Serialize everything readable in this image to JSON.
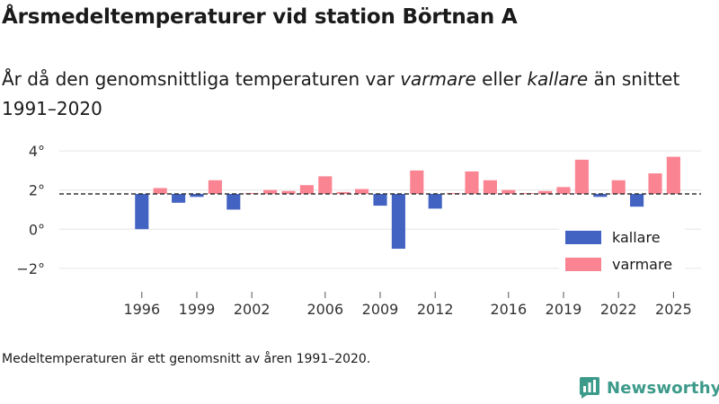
{
  "title": "Årsmedeltemperaturer vid station Börtnan A",
  "subtitle": {
    "part1": "År då den genomsnittliga temperaturen var ",
    "warm_word": "varmare",
    "part2": " eller ",
    "cold_word": "kallare",
    "part3": " än snittet 1991–2020"
  },
  "note": "Medeltemperaturen är ett genomsnitt av åren 1991–2020.",
  "brand": {
    "name": "Newsworthy"
  },
  "colors": {
    "kallare": "#4263c2",
    "varmare": "#fb8493",
    "grid": "#e6e6e6",
    "reference": "#333333",
    "brand": "#3c9a8a"
  },
  "chart_data": {
    "type": "bar",
    "reference_line": 1.8,
    "ylim": [
      -3.2,
      4.6
    ],
    "y_ticks": [
      {
        "value": -2,
        "label": "−2°"
      },
      {
        "value": 0,
        "label": "0°"
      },
      {
        "value": 2,
        "label": "2°"
      },
      {
        "value": 4,
        "label": "4°"
      }
    ],
    "x_ticks": [
      1996,
      1999,
      2002,
      2006,
      2009,
      2012,
      2016,
      2019,
      2022,
      2025
    ],
    "xlim": [
      1991.5,
      2026.5
    ],
    "legend": {
      "position": "bottom-right",
      "entries": [
        {
          "key": "kallare",
          "label": "kallare"
        },
        {
          "key": "varmare",
          "label": "varmare"
        }
      ]
    },
    "series": [
      {
        "year": 1996,
        "value": 0.0
      },
      {
        "year": 1997,
        "value": 2.1
      },
      {
        "year": 1998,
        "value": 1.35
      },
      {
        "year": 1999,
        "value": 1.65
      },
      {
        "year": 2000,
        "value": 2.5
      },
      {
        "year": 2001,
        "value": 1.0
      },
      {
        "year": 2002,
        "value": 1.85
      },
      {
        "year": 2003,
        "value": 2.0
      },
      {
        "year": 2004,
        "value": 1.95
      },
      {
        "year": 2005,
        "value": 2.25
      },
      {
        "year": 2006,
        "value": 2.7
      },
      {
        "year": 2007,
        "value": 1.9
      },
      {
        "year": 2008,
        "value": 2.05
      },
      {
        "year": 2009,
        "value": 1.2
      },
      {
        "year": 2010,
        "value": -1.0
      },
      {
        "year": 2011,
        "value": 3.0
      },
      {
        "year": 2012,
        "value": 1.05
      },
      {
        "year": 2013,
        "value": 1.85
      },
      {
        "year": 2014,
        "value": 2.95
      },
      {
        "year": 2015,
        "value": 2.5
      },
      {
        "year": 2016,
        "value": 2.0
      },
      {
        "year": 2017,
        "value": 1.85
      },
      {
        "year": 2018,
        "value": 1.95
      },
      {
        "year": 2019,
        "value": 2.15
      },
      {
        "year": 2020,
        "value": 3.55
      },
      {
        "year": 2021,
        "value": 1.65
      },
      {
        "year": 2022,
        "value": 2.5
      },
      {
        "year": 2023,
        "value": 1.15
      },
      {
        "year": 2024,
        "value": 2.85
      },
      {
        "year": 2025,
        "value": 3.7
      }
    ]
  }
}
